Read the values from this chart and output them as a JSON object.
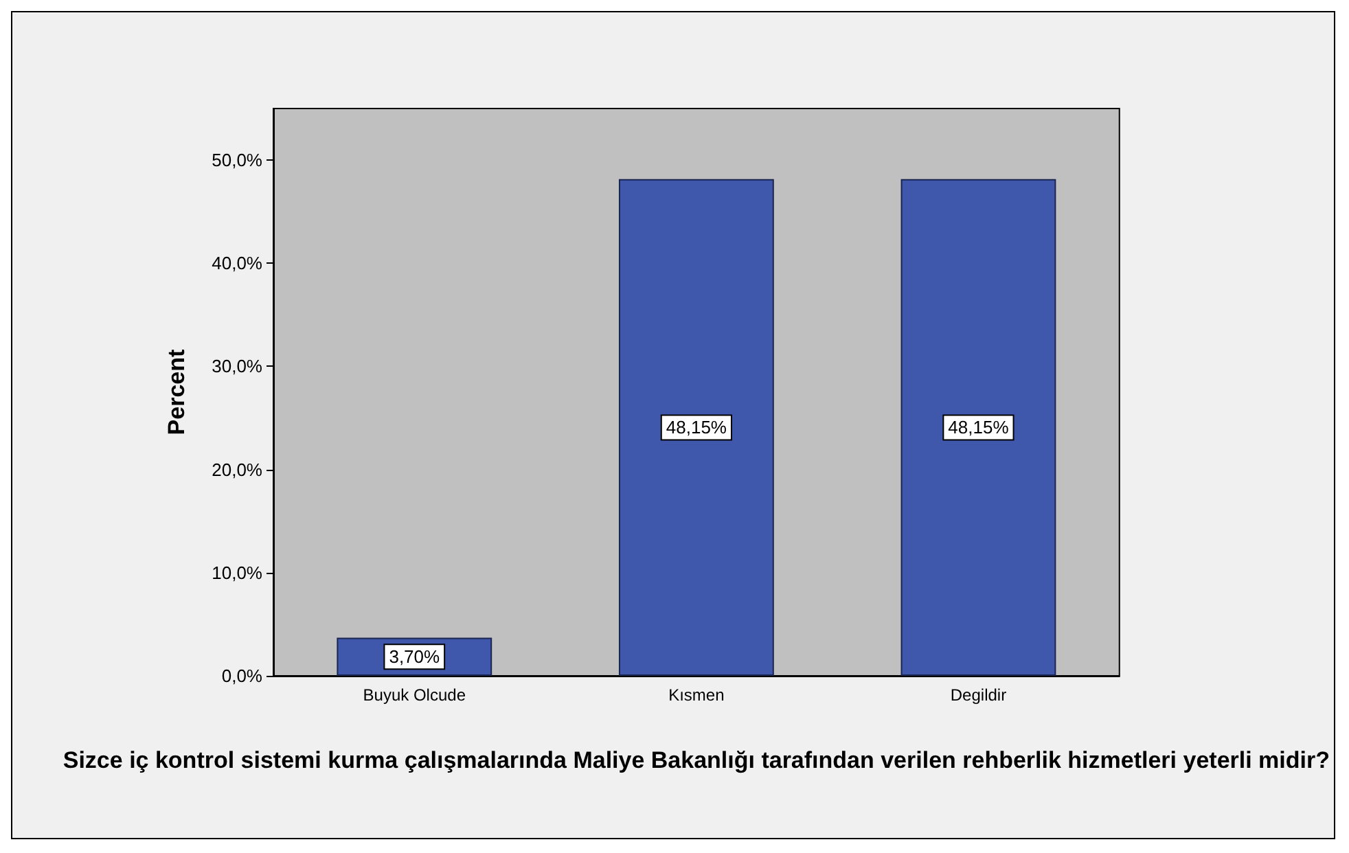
{
  "chart_data": {
    "type": "bar",
    "xlabel": "Sizce iç kontrol sistemi kurma çalışmalarında Maliye Bakanlığı tarafından verilen rehberlik hizmetleri yeterli midir?",
    "ylabel": "Percent",
    "categories": [
      "Buyuk Olcude",
      "Kısmen",
      "Degildir"
    ],
    "values": [
      3.7,
      48.15,
      48.15
    ],
    "value_labels": [
      "3,70%",
      "48,15%",
      "48,15%"
    ],
    "color": "#3f58ab",
    "ylim": [
      0,
      55
    ],
    "yticks": [
      {
        "value": 0,
        "label": "0,0%"
      },
      {
        "value": 10,
        "label": "10,0%"
      },
      {
        "value": 20,
        "label": "20,0%"
      },
      {
        "value": 30,
        "label": "30,0%"
      },
      {
        "value": 40,
        "label": "40,0%"
      },
      {
        "value": 50,
        "label": "50,0%"
      }
    ]
  }
}
